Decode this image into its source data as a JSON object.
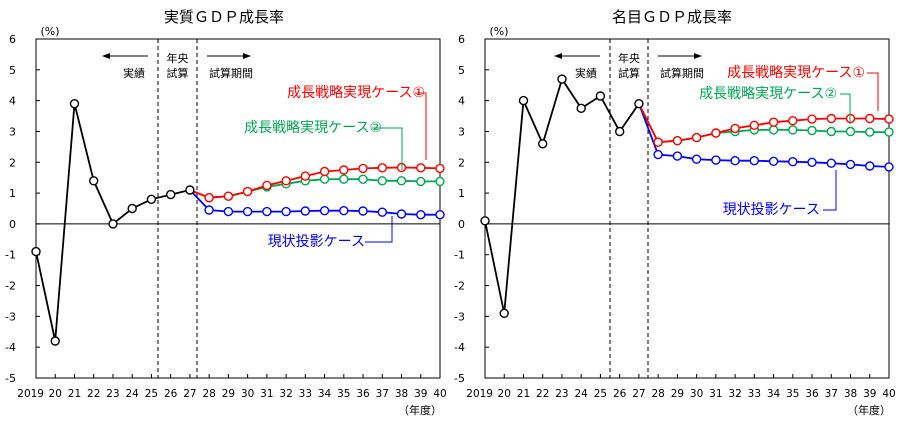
{
  "chart_data": [
    {
      "type": "line",
      "title": "実質ＧＤＰ成長率",
      "yunit": "(%)",
      "xunit": "（年度）",
      "ylim": [
        -5,
        6
      ],
      "yticks": [
        "6",
        "5",
        "4",
        "3",
        "2",
        "1",
        "0",
        "-1",
        "-2",
        "-3",
        "-4",
        "-5"
      ],
      "xticks": [
        "2019",
        "20",
        "21",
        "22",
        "23",
        "24",
        "25",
        "26",
        "27",
        "28",
        "29",
        "30",
        "31",
        "32",
        "33",
        "34",
        "35",
        "36",
        "37",
        "38",
        "39",
        "40"
      ],
      "grid": false,
      "annotations": {
        "actual": "実績",
        "estimate_line1": "年央",
        "estimate_line2": "試算",
        "projection": "試算期間"
      },
      "series": [
        {
          "name": "実績",
          "color": "#000000",
          "x": [
            2019,
            2020,
            2021,
            2022,
            2023,
            2024,
            2025,
            2026,
            2027
          ],
          "values": [
            -0.9,
            -3.8,
            3.9,
            1.4,
            0.0,
            0.5,
            0.8,
            0.95,
            1.1
          ]
        },
        {
          "name": "成長戦略実現ケース①",
          "color": "#ff0000",
          "x": [
            2027,
            2028,
            2029,
            2030,
            2031,
            2032,
            2033,
            2034,
            2035,
            2036,
            2037,
            2038,
            2039,
            2040
          ],
          "values": [
            1.1,
            0.85,
            0.9,
            1.05,
            1.25,
            1.4,
            1.55,
            1.7,
            1.75,
            1.8,
            1.82,
            1.83,
            1.82,
            1.8
          ]
        },
        {
          "name": "成長戦略実現ケース②",
          "color": "#00a550",
          "x": [
            2027,
            2028,
            2029,
            2030,
            2031,
            2032,
            2033,
            2034,
            2035,
            2036,
            2037,
            2038,
            2039,
            2040
          ],
          "values": [
            1.1,
            0.85,
            0.9,
            1.05,
            1.2,
            1.3,
            1.4,
            1.45,
            1.45,
            1.45,
            1.4,
            1.4,
            1.38,
            1.38
          ]
        },
        {
          "name": "現状投影ケース",
          "color": "#0000ff",
          "x": [
            2027,
            2028,
            2029,
            2030,
            2031,
            2032,
            2033,
            2034,
            2035,
            2036,
            2037,
            2038,
            2039,
            2040
          ],
          "values": [
            1.1,
            0.45,
            0.4,
            0.4,
            0.4,
            0.4,
            0.42,
            0.43,
            0.43,
            0.42,
            0.38,
            0.32,
            0.3,
            0.3
          ]
        }
      ]
    },
    {
      "type": "line",
      "title": "名目ＧＤＰ成長率",
      "yunit": "(%)",
      "xunit": "（年度）",
      "ylim": [
        -5,
        6
      ],
      "yticks": [
        "6",
        "5",
        "4",
        "3",
        "2",
        "1",
        "0",
        "-1",
        "-2",
        "-3",
        "-4",
        "-5"
      ],
      "xticks": [
        "2019",
        "20",
        "21",
        "22",
        "23",
        "24",
        "25",
        "26",
        "27",
        "28",
        "29",
        "30",
        "31",
        "32",
        "33",
        "34",
        "35",
        "36",
        "37",
        "38",
        "39",
        "40"
      ],
      "grid": false,
      "annotations": {
        "actual": "実績",
        "estimate_line1": "年央",
        "estimate_line2": "試算",
        "projection": "試算期間"
      },
      "series": [
        {
          "name": "実績",
          "color": "#000000",
          "x": [
            2019,
            2020,
            2021,
            2022,
            2023,
            2024,
            2025,
            2026,
            2027
          ],
          "values": [
            0.1,
            -2.9,
            4.0,
            2.6,
            4.7,
            3.75,
            4.15,
            3.0,
            3.9
          ]
        },
        {
          "name": "成長戦略実現ケース①",
          "color": "#ff0000",
          "x": [
            2027,
            2028,
            2029,
            2030,
            2031,
            2032,
            2033,
            2034,
            2035,
            2036,
            2037,
            2038,
            2039,
            2040
          ],
          "values": [
            3.9,
            2.65,
            2.7,
            2.8,
            2.95,
            3.1,
            3.2,
            3.3,
            3.35,
            3.4,
            3.42,
            3.42,
            3.42,
            3.4
          ]
        },
        {
          "name": "成長戦略実現ケース②",
          "color": "#00a550",
          "x": [
            2027,
            2028,
            2029,
            2030,
            2031,
            2032,
            2033,
            2034,
            2035,
            2036,
            2037,
            2038,
            2039,
            2040
          ],
          "values": [
            3.9,
            2.65,
            2.7,
            2.8,
            2.95,
            3.0,
            3.05,
            3.05,
            3.05,
            3.03,
            3.0,
            3.0,
            2.98,
            2.98
          ]
        },
        {
          "name": "現状投影ケース",
          "color": "#0000ff",
          "x": [
            2027,
            2028,
            2029,
            2030,
            2031,
            2032,
            2033,
            2034,
            2035,
            2036,
            2037,
            2038,
            2039,
            2040
          ],
          "values": [
            3.9,
            2.25,
            2.2,
            2.1,
            2.07,
            2.05,
            2.05,
            2.03,
            2.02,
            2.0,
            1.97,
            1.93,
            1.88,
            1.85
          ]
        }
      ]
    }
  ]
}
